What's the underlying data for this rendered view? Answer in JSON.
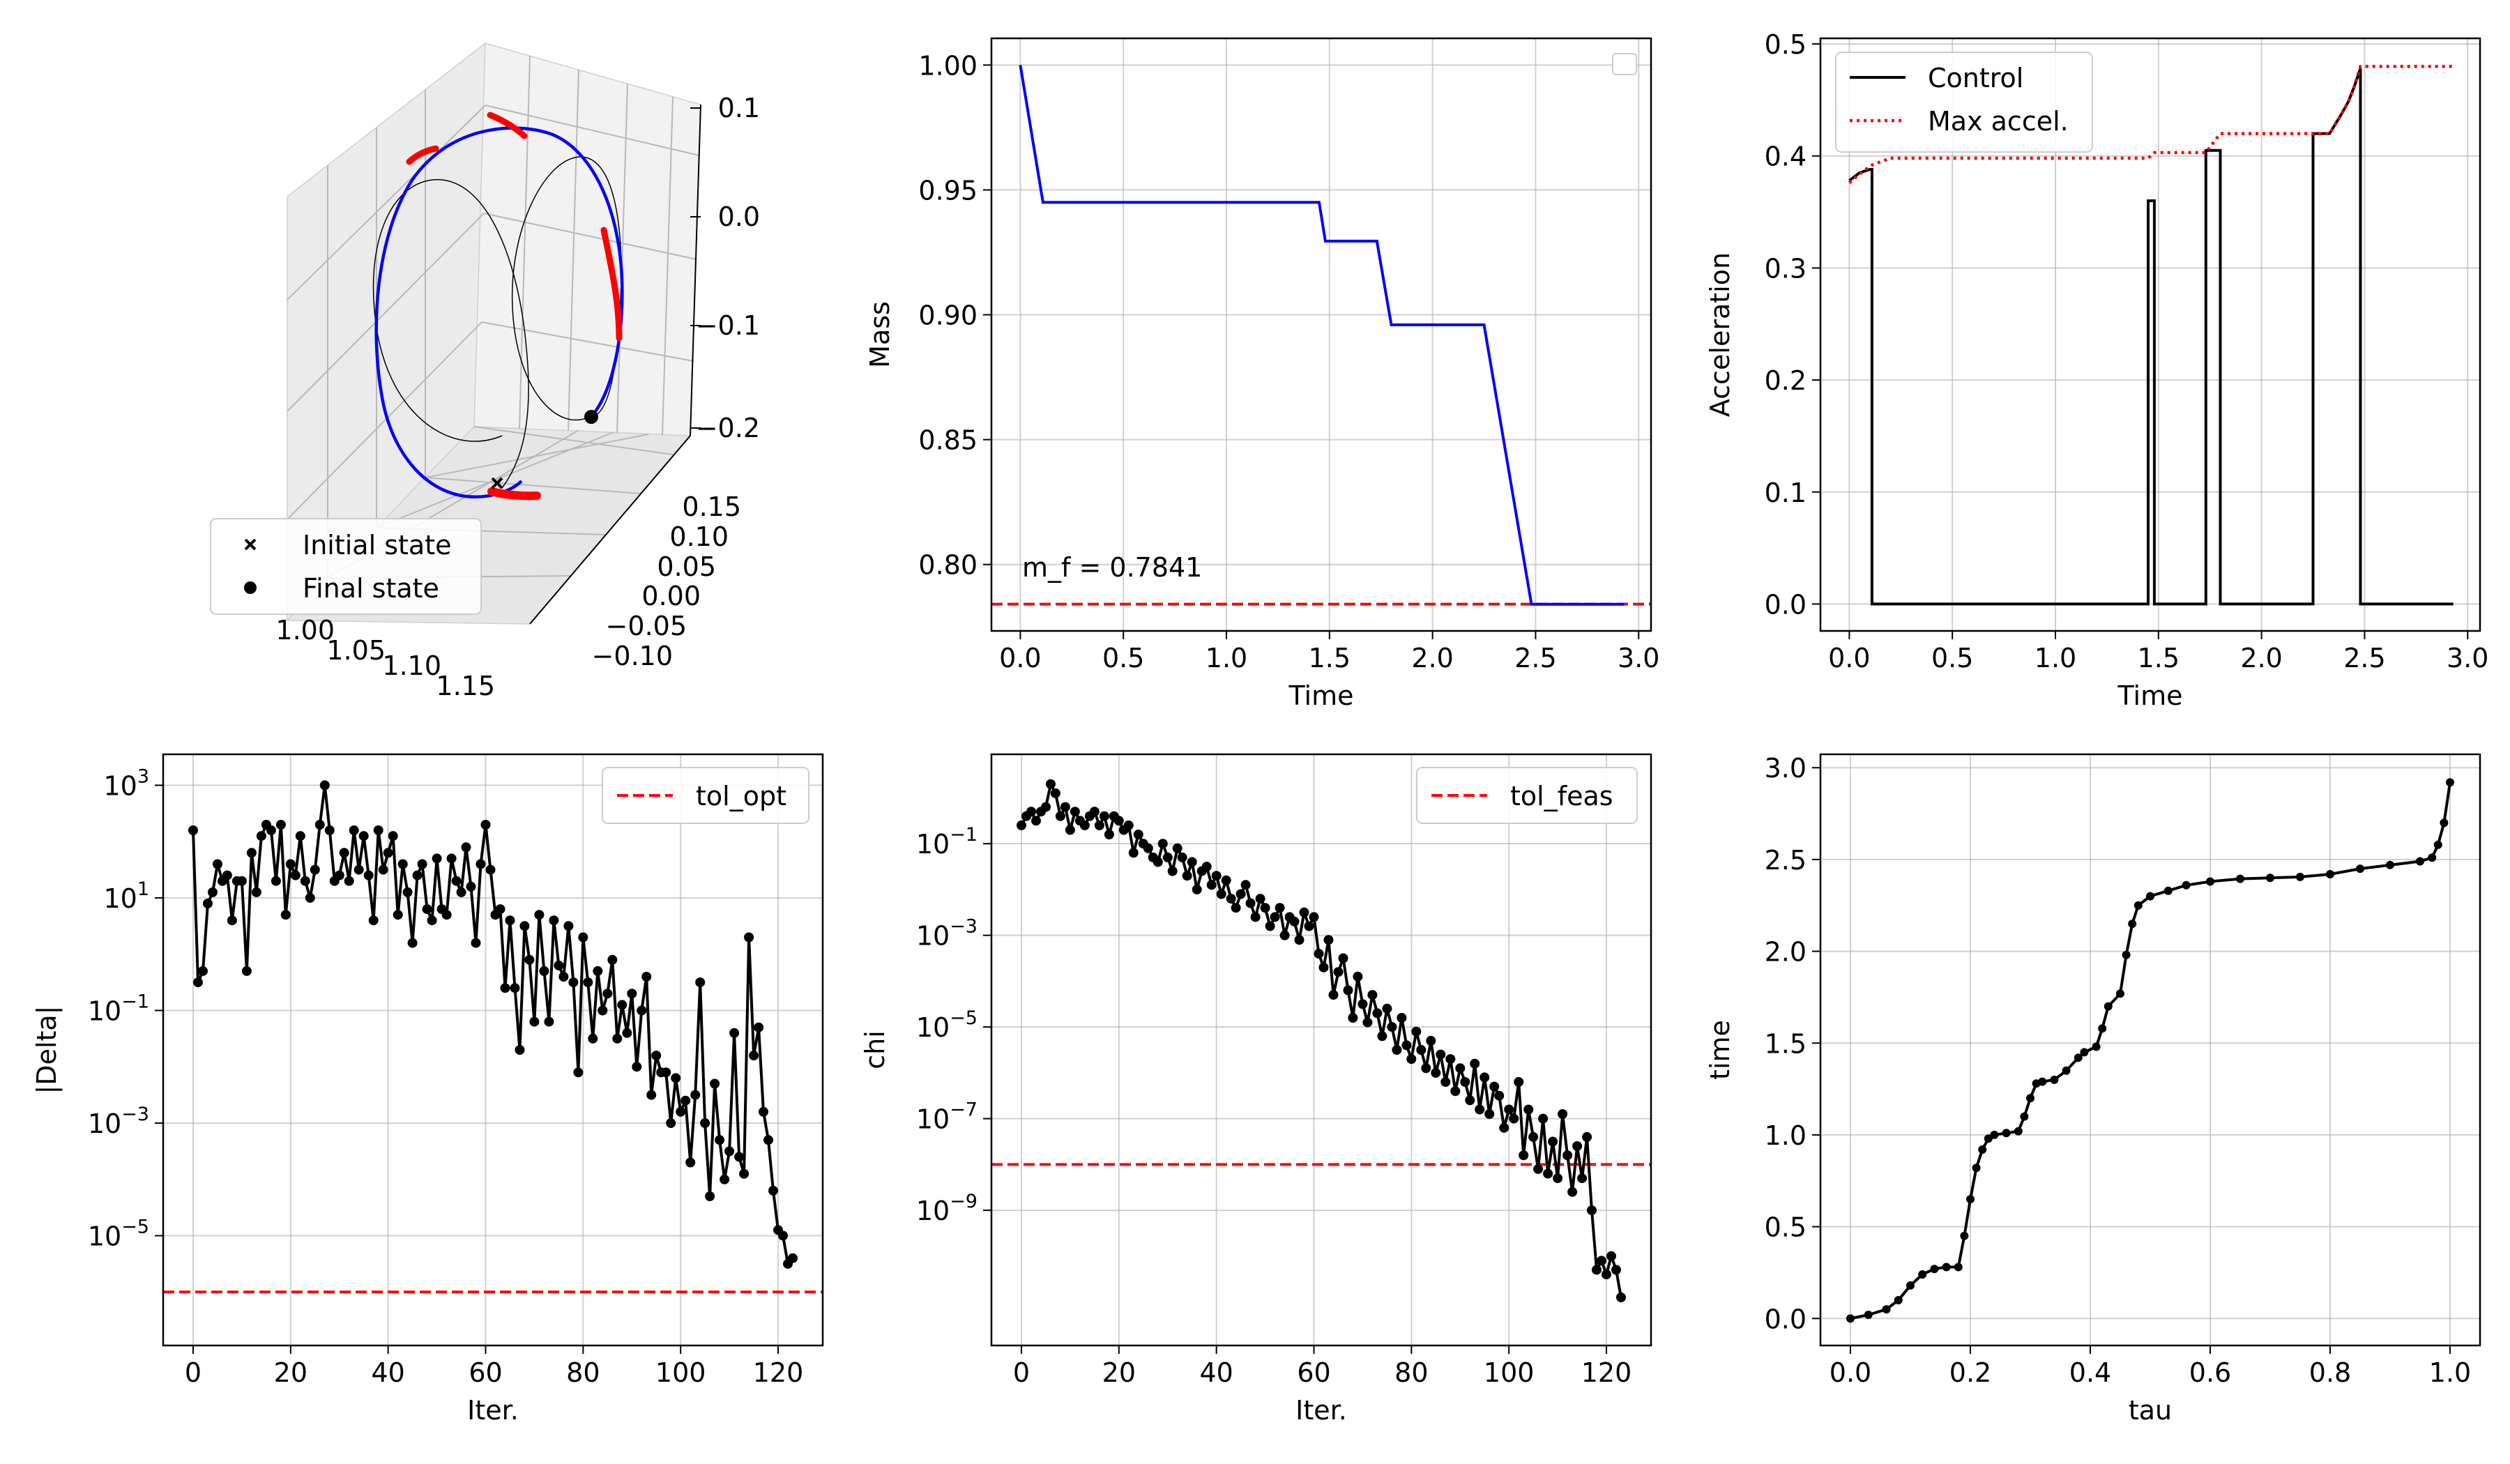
{
  "chart_data": [
    {
      "type": "line3d",
      "tick_labels": {
        "z": [
          "0.1",
          "0.0",
          "−0.1",
          "−0.2"
        ],
        "y": [
          "0.15",
          "0.10",
          "0.05",
          "0.00",
          "−0.05",
          "−0.10"
        ],
        "x": [
          "1.00",
          "1.05",
          "1.10",
          "1.15"
        ]
      },
      "legend": {
        "placement": "lower-left",
        "entries": [
          {
            "label": "Initial state",
            "marker": "x",
            "color": "#000000"
          },
          {
            "label": "Final state",
            "marker": "o",
            "color": "#000000"
          }
        ]
      },
      "series": [
        {
          "role": "transfer-trajectory",
          "color": "#0000ff"
        },
        {
          "role": "thrust-arcs",
          "color": "#ff0000"
        },
        {
          "role": "initial-orbit",
          "color": "#000000"
        },
        {
          "role": "target-orbit",
          "color": "#000000"
        }
      ],
      "grid": true
    },
    {
      "type": "line",
      "xlabel": "Time",
      "ylabel": "Mass",
      "xlim": [
        -0.14,
        3.06
      ],
      "ylim": [
        0.7734,
        1.0107
      ],
      "xticks": [
        "0.0",
        "0.5",
        "1.0",
        "1.5",
        "2.0",
        "2.5",
        "3.0"
      ],
      "yticks": [
        "0.80",
        "0.85",
        "0.90",
        "0.95",
        "1.00"
      ],
      "series": [
        {
          "color": "#0000ff",
          "points": [
            [
              0,
              1.0
            ],
            [
              0.11,
              0.945
            ],
            [
              1.45,
              0.945
            ],
            [
              1.48,
              0.9295
            ],
            [
              1.73,
              0.9295
            ],
            [
              1.8,
              0.896
            ],
            [
              2.25,
              0.896
            ],
            [
              2.48,
              0.7841
            ],
            [
              2.93,
              0.7841
            ]
          ]
        }
      ],
      "hline": {
        "y": 0.7841,
        "color": "#ff0000",
        "style": "dashed"
      },
      "annotation": {
        "text": "m_f = 0.7841",
        "color": "#ff0000"
      },
      "legend": {
        "placement": "top-right",
        "empty": true
      },
      "grid": true
    },
    {
      "type": "line",
      "xlabel": "Time",
      "ylabel": "Acceleration",
      "xlim": [
        -0.14,
        3.06
      ],
      "ylim": [
        -0.024,
        0.505
      ],
      "xticks": [
        "0.0",
        "0.5",
        "1.0",
        "1.5",
        "2.0",
        "2.5",
        "3.0"
      ],
      "yticks": [
        "0.0",
        "0.1",
        "0.2",
        "0.3",
        "0.4",
        "0.5"
      ],
      "legend": {
        "placement": "top-left"
      },
      "series": [
        {
          "name": "Control",
          "color": "#000000",
          "style": "solid",
          "points": [
            [
              0,
              0.378
            ],
            [
              0.05,
              0.385
            ],
            [
              0.1,
              0.388
            ],
            [
              0.11,
              0.388
            ],
            [
              0.11,
              0
            ],
            [
              1.45,
              0
            ],
            [
              1.45,
              0.36
            ],
            [
              1.48,
              0.36
            ],
            [
              1.48,
              0
            ],
            [
              1.73,
              0
            ],
            [
              1.73,
              0.405
            ],
            [
              1.8,
              0.405
            ],
            [
              1.8,
              0
            ],
            [
              2.25,
              0
            ],
            [
              2.25,
              0.42
            ],
            [
              2.33,
              0.42
            ],
            [
              2.38,
              0.435
            ],
            [
              2.42,
              0.448
            ],
            [
              2.45,
              0.462
            ],
            [
              2.48,
              0.478
            ],
            [
              2.48,
              0
            ],
            [
              2.93,
              0
            ]
          ]
        },
        {
          "name": "Max accel.",
          "color": "#ff0000",
          "style": "dotted",
          "points": [
            [
              0,
              0.376
            ],
            [
              0.05,
              0.384
            ],
            [
              0.11,
              0.392
            ],
            [
              0.2,
              0.398
            ],
            [
              0.6,
              0.398
            ],
            [
              1.0,
              0.398
            ],
            [
              1.45,
              0.398
            ],
            [
              1.48,
              0.403
            ],
            [
              1.73,
              0.403
            ],
            [
              1.8,
              0.42
            ],
            [
              2.25,
              0.42
            ],
            [
              2.33,
              0.42
            ],
            [
              2.38,
              0.435
            ],
            [
              2.42,
              0.448
            ],
            [
              2.45,
              0.462
            ],
            [
              2.48,
              0.48
            ],
            [
              2.93,
              0.48
            ]
          ]
        }
      ],
      "grid": true
    },
    {
      "type": "line",
      "yscale": "log",
      "xlabel": "Iter.",
      "ylabel": "|Delta|",
      "xlim": [
        -6.15,
        129.15
      ],
      "ylim_log10": [
        -6.95,
        3.55
      ],
      "xticks": [
        "0",
        "20",
        "40",
        "60",
        "80",
        "100",
        "120"
      ],
      "yticks": [
        {
          "base": "10",
          "exp": "3",
          "v": 3
        },
        {
          "base": "10",
          "exp": "1",
          "v": 1
        },
        {
          "base": "10",
          "exp": "−1",
          "v": -1
        },
        {
          "base": "10",
          "exp": "−3",
          "v": -3
        },
        {
          "base": "10",
          "exp": "−5",
          "v": -5
        }
      ],
      "legend": {
        "placement": "top-right"
      },
      "hline": {
        "name": "tol_opt",
        "log10_value": -6.0,
        "color": "#ff0000",
        "style": "dashed"
      },
      "series": [
        {
          "color": "#000000",
          "marker": "o",
          "log10_values": [
            2.2,
            -0.5,
            -0.3,
            0.9,
            1.1,
            1.6,
            1.3,
            1.4,
            0.6,
            1.3,
            1.3,
            -0.3,
            1.8,
            1.1,
            2.1,
            2.3,
            2.2,
            1.3,
            2.3,
            0.7,
            1.6,
            1.4,
            2.1,
            1.3,
            1.0,
            1.5,
            2.3,
            3.0,
            2.2,
            1.3,
            1.4,
            1.8,
            1.3,
            2.2,
            1.5,
            2.1,
            1.4,
            0.6,
            2.2,
            1.5,
            1.8,
            2.1,
            0.7,
            1.6,
            1.1,
            0.2,
            1.4,
            1.6,
            0.8,
            0.6,
            1.7,
            0.8,
            0.7,
            1.7,
            1.3,
            1.1,
            1.9,
            1.2,
            0.2,
            1.6,
            2.3,
            1.5,
            0.7,
            0.8,
            -0.6,
            0.6,
            -0.6,
            -1.7,
            0.5,
            -0.1,
            -1.2,
            0.7,
            -0.3,
            -1.2,
            0.6,
            -0.2,
            -0.4,
            0.5,
            -0.5,
            -2.1,
            0.3,
            -0.5,
            -1.5,
            -0.3,
            -1.0,
            -0.7,
            -0.1,
            -1.5,
            -0.9,
            -1.4,
            -0.7,
            -2.0,
            -1.0,
            -0.4,
            -2.5,
            -1.8,
            -2.1,
            -2.1,
            -3.0,
            -2.2,
            -2.8,
            -2.6,
            -3.7,
            -2.5,
            -0.5,
            -3.0,
            -4.3,
            -2.3,
            -3.3,
            -4.0,
            -3.5,
            -1.4,
            -3.6,
            -3.9,
            0.3,
            -1.8,
            -1.3,
            -2.8,
            -3.3,
            -4.2,
            -4.9,
            -5.0,
            -5.5,
            -5.4
          ]
        }
      ],
      "grid": true
    },
    {
      "type": "line",
      "yscale": "log",
      "xlabel": "Iter.",
      "ylabel": "chi",
      "xlim": [
        -6.15,
        129.15
      ],
      "ylim_log10": [
        -11.95,
        0.95
      ],
      "xticks": [
        "0",
        "20",
        "40",
        "60",
        "80",
        "100",
        "120"
      ],
      "yticks": [
        {
          "base": "10",
          "exp": "−1",
          "v": -1
        },
        {
          "base": "10",
          "exp": "−3",
          "v": -3
        },
        {
          "base": "10",
          "exp": "−5",
          "v": -5
        },
        {
          "base": "10",
          "exp": "−7",
          "v": -7
        },
        {
          "base": "10",
          "exp": "−9",
          "v": -9
        }
      ],
      "legend": {
        "placement": "top-right"
      },
      "hline": {
        "name": "tol_feas",
        "log10_value": -8.0,
        "color": "#ff0000",
        "style": "dashed"
      },
      "series": [
        {
          "color": "#000000",
          "marker": "o",
          "log10_values": [
            -0.6,
            -0.4,
            -0.3,
            -0.5,
            -0.3,
            -0.2,
            0.3,
            0.1,
            -0.4,
            -0.2,
            -0.7,
            -0.3,
            -0.5,
            -0.6,
            -0.4,
            -0.3,
            -0.6,
            -0.4,
            -0.8,
            -0.4,
            -0.5,
            -0.7,
            -0.6,
            -1.2,
            -0.8,
            -1.0,
            -1.1,
            -1.3,
            -1.4,
            -1.0,
            -1.3,
            -1.6,
            -1.1,
            -1.3,
            -1.7,
            -1.4,
            -2.0,
            -1.6,
            -1.5,
            -1.9,
            -1.7,
            -2.1,
            -1.8,
            -2.2,
            -2.4,
            -2.1,
            -1.9,
            -2.3,
            -2.6,
            -2.2,
            -2.4,
            -2.8,
            -2.6,
            -2.4,
            -3.0,
            -2.6,
            -2.7,
            -3.1,
            -2.5,
            -2.8,
            -2.6,
            -3.4,
            -3.7,
            -3.1,
            -4.3,
            -3.8,
            -3.5,
            -4.2,
            -4.8,
            -3.9,
            -4.5,
            -4.9,
            -4.3,
            -4.7,
            -5.2,
            -4.6,
            -5.0,
            -5.5,
            -4.8,
            -5.4,
            -5.7,
            -5.1,
            -5.5,
            -5.9,
            -5.3,
            -6.0,
            -5.6,
            -6.2,
            -5.7,
            -6.4,
            -5.9,
            -6.2,
            -6.6,
            -5.8,
            -6.8,
            -6.1,
            -6.9,
            -6.3,
            -6.5,
            -7.2,
            -6.8,
            -7.0,
            -6.2,
            -7.8,
            -6.8,
            -7.4,
            -8.1,
            -7.0,
            -8.2,
            -7.5,
            -8.3,
            -6.9,
            -7.8,
            -8.6,
            -7.6,
            -8.3,
            -7.4,
            -9.0,
            -10.3,
            -10.1,
            -10.4,
            -10.0,
            -10.3,
            -10.9
          ]
        }
      ],
      "grid": true
    },
    {
      "type": "line",
      "xlabel": "tau",
      "ylabel": "time",
      "xlim": [
        -0.05,
        1.05
      ],
      "ylim": [
        -0.147,
        3.073
      ],
      "xticks": [
        "0.0",
        "0.2",
        "0.4",
        "0.6",
        "0.8",
        "1.0"
      ],
      "yticks": [
        "0.0",
        "0.5",
        "1.0",
        "1.5",
        "2.0",
        "2.5",
        "3.0"
      ],
      "series": [
        {
          "color": "#000000",
          "marker": "o",
          "points": [
            [
              0,
              0
            ],
            [
              0.03,
              0.02
            ],
            [
              0.06,
              0.05
            ],
            [
              0.08,
              0.1
            ],
            [
              0.1,
              0.18
            ],
            [
              0.12,
              0.24
            ],
            [
              0.14,
              0.27
            ],
            [
              0.16,
              0.28
            ],
            [
              0.18,
              0.28
            ],
            [
              0.19,
              0.45
            ],
            [
              0.2,
              0.65
            ],
            [
              0.21,
              0.82
            ],
            [
              0.22,
              0.92
            ],
            [
              0.23,
              0.98
            ],
            [
              0.24,
              1.0
            ],
            [
              0.26,
              1.01
            ],
            [
              0.28,
              1.02
            ],
            [
              0.29,
              1.1
            ],
            [
              0.3,
              1.2
            ],
            [
              0.31,
              1.28
            ],
            [
              0.32,
              1.29
            ],
            [
              0.34,
              1.3
            ],
            [
              0.36,
              1.35
            ],
            [
              0.38,
              1.42
            ],
            [
              0.39,
              1.45
            ],
            [
              0.41,
              1.48
            ],
            [
              0.42,
              1.58
            ],
            [
              0.43,
              1.7
            ],
            [
              0.45,
              1.77
            ],
            [
              0.46,
              1.98
            ],
            [
              0.47,
              2.15
            ],
            [
              0.48,
              2.25
            ],
            [
              0.5,
              2.3
            ],
            [
              0.53,
              2.33
            ],
            [
              0.56,
              2.36
            ],
            [
              0.6,
              2.38
            ],
            [
              0.65,
              2.395
            ],
            [
              0.7,
              2.4
            ],
            [
              0.75,
              2.405
            ],
            [
              0.8,
              2.42
            ],
            [
              0.85,
              2.45
            ],
            [
              0.9,
              2.47
            ],
            [
              0.95,
              2.49
            ],
            [
              0.97,
              2.51
            ],
            [
              0.98,
              2.58
            ],
            [
              0.99,
              2.7
            ],
            [
              1.0,
              2.92
            ]
          ]
        }
      ],
      "grid": true
    }
  ]
}
